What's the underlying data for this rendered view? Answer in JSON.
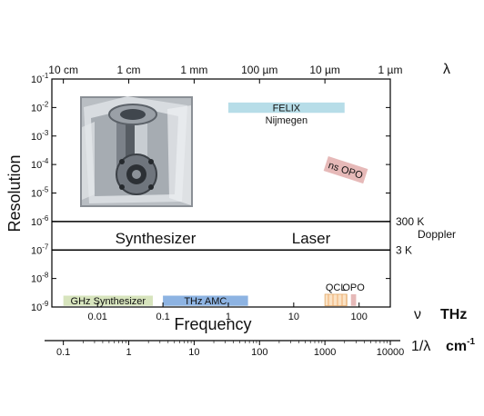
{
  "chart_data": {
    "type": "scatter",
    "title": "",
    "ylabel": "Resolution",
    "xlabel": "Frequency",
    "x_scale": "log",
    "y_scale": "log",
    "xlim": [
      0.002,
      300
    ],
    "ylim": [
      1e-09,
      0.1
    ],
    "y_ticks": [
      {
        "value": 0.1,
        "mant": "10",
        "exp": "-1"
      },
      {
        "value": 0.01,
        "mant": "10",
        "exp": "-2"
      },
      {
        "value": 0.001,
        "mant": "10",
        "exp": "-3"
      },
      {
        "value": 0.0001,
        "mant": "10",
        "exp": "-4"
      },
      {
        "value": 1e-05,
        "mant": "10",
        "exp": "-5"
      },
      {
        "value": 1e-06,
        "mant": "10",
        "exp": "-6"
      },
      {
        "value": 1e-07,
        "mant": "10",
        "exp": "-7"
      },
      {
        "value": 1e-08,
        "mant": "10",
        "exp": "-8"
      },
      {
        "value": 1e-09,
        "mant": "10",
        "exp": "-9"
      }
    ],
    "x_ticks": [
      {
        "value": 0.01,
        "label": "0.01"
      },
      {
        "value": 0.1,
        "label": "0.1"
      },
      {
        "value": 1,
        "label": "1"
      },
      {
        "value": 10,
        "label": "10"
      },
      {
        "value": 100,
        "label": "100"
      }
    ],
    "wavelength_ticks": [
      {
        "freq_thz": 0.003,
        "label": "10 cm"
      },
      {
        "freq_thz": 0.03,
        "label": "1 cm"
      },
      {
        "freq_thz": 0.3,
        "label": "1 mm"
      },
      {
        "freq_thz": 3,
        "label": "100 µm"
      },
      {
        "freq_thz": 30,
        "label": "10 µm"
      },
      {
        "freq_thz": 300,
        "label": "1 µm"
      }
    ],
    "wavenumber_ticks": [
      {
        "freq_thz": 0.003,
        "label": "0.1"
      },
      {
        "freq_thz": 0.03,
        "label": "1"
      },
      {
        "freq_thz": 0.3,
        "label": "10"
      },
      {
        "freq_thz": 3,
        "label": "100"
      },
      {
        "freq_thz": 30,
        "label": "1000"
      },
      {
        "freq_thz": 300,
        "label": "10000"
      }
    ],
    "separator_lines": [
      {
        "y": 1e-06,
        "label": "300 K"
      },
      {
        "y": 1e-07,
        "label": "3 K"
      }
    ],
    "doppler_label": "Doppler",
    "region_labels": {
      "left": "Synthesizer",
      "right": "Laser"
    },
    "sources": [
      {
        "label": "GHz Synthesizer",
        "x": [
          0.003,
          0.07
        ],
        "y": [
          1.1e-09,
          2.5e-09
        ],
        "color": "#d7e4bd"
      },
      {
        "label": "THz AMC",
        "x": [
          0.1,
          2.0
        ],
        "y": [
          1.1e-09,
          2.5e-09
        ],
        "color": "#8db3e2"
      },
      {
        "label": "FELIX",
        "x": [
          1.0,
          60
        ],
        "y": [
          0.0065,
          0.015
        ],
        "color": "#b7dde8",
        "sublabel": "Nijmegen"
      },
      {
        "label": "ns OPO",
        "x": [
          30,
          130
        ],
        "y": [
          3.5e-05,
          0.00012
        ],
        "color": "#e6b9b8",
        "rotate": 18
      },
      {
        "label": "QCL",
        "x": [
          30,
          65
        ],
        "y": [
          1.1e-09,
          2.8e-09
        ],
        "color": "#fbe3c5",
        "striped": true,
        "label_above": true
      },
      {
        "label": "OPO",
        "x": [
          75,
          90
        ],
        "y": [
          1.1e-09,
          2.8e-09
        ],
        "color": "#e6b9b8",
        "label_above": true
      }
    ]
  },
  "labels": {
    "lambda": "λ",
    "nu": "ν",
    "thz": "THz",
    "inv_lambda": "1/λ",
    "cm_unit": "cm",
    "cm_exp": "-1"
  }
}
